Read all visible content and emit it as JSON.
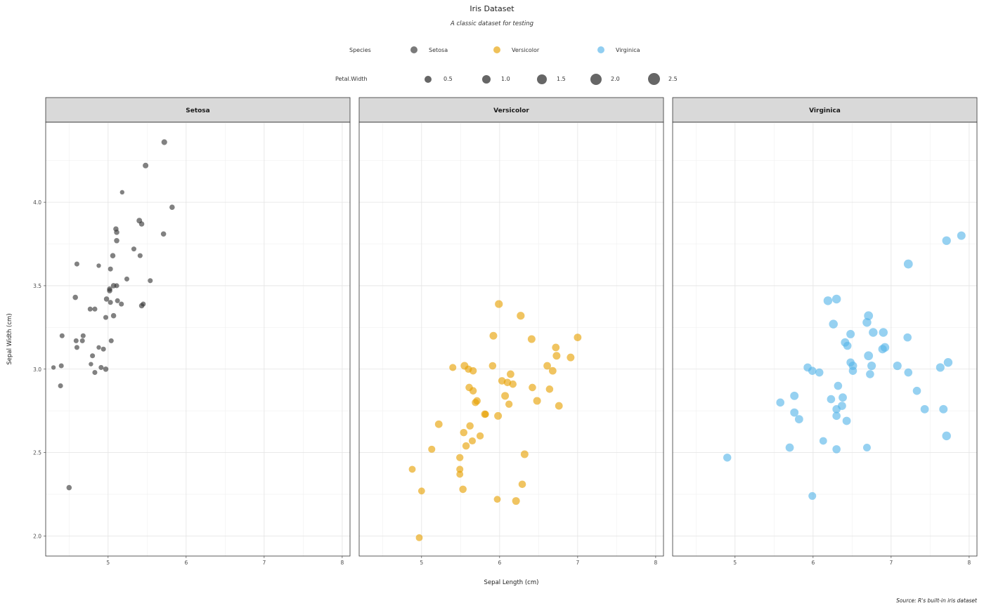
{
  "chart_data": {
    "type": "scatter",
    "title": "Iris Dataset",
    "subtitle": "A classic dataset for testing",
    "caption": "Source: R's built-in iris dataset",
    "xlabel": "Sepal Length (cm)",
    "ylabel": "Sepal Width (cm)",
    "xlim": [
      4.2,
      8.1
    ],
    "ylim": [
      1.88,
      4.48
    ],
    "x_ticks": [
      "5",
      "6",
      "7",
      "8"
    ],
    "y_ticks": [
      "2.0",
      "2.5",
      "3.0",
      "3.5",
      "4.0"
    ],
    "grid": true,
    "legend_position": "top",
    "legends": [
      {
        "title": "Species",
        "entries": [
          {
            "label": "Setosa",
            "color": "#333333"
          },
          {
            "label": "Versicolor",
            "color": "#E69F00"
          },
          {
            "label": "Virginica",
            "color": "#56B4E9"
          }
        ]
      },
      {
        "title": "Petal.Width",
        "entries": [
          {
            "label": "0.5",
            "value": 0.5
          },
          {
            "label": "1.0",
            "value": 1.0
          },
          {
            "label": "1.5",
            "value": 1.5
          },
          {
            "label": "2.0",
            "value": 2.0
          },
          {
            "label": "2.5",
            "value": 2.5
          }
        ]
      }
    ],
    "panels": [
      {
        "name": "Setosa",
        "color": "#333333",
        "points": [
          [
            5.72,
            4.36,
            0.45
          ],
          [
            5.48,
            4.22,
            0.4
          ],
          [
            5.18,
            4.06,
            0.1
          ],
          [
            5.82,
            3.97,
            0.3
          ],
          [
            5.1,
            3.84,
            0.3
          ],
          [
            5.11,
            3.82,
            0.3
          ],
          [
            5.4,
            3.89,
            0.4
          ],
          [
            5.43,
            3.87,
            0.3
          ],
          [
            5.71,
            3.81,
            0.3
          ],
          [
            5.11,
            3.77,
            0.3
          ],
          [
            5.33,
            3.72,
            0.2
          ],
          [
            5.06,
            3.68,
            0.3
          ],
          [
            5.41,
            3.68,
            0.2
          ],
          [
            4.6,
            3.63,
            0.2
          ],
          [
            4.88,
            3.62,
            0.1
          ],
          [
            5.03,
            3.6,
            0.2
          ],
          [
            5.24,
            3.54,
            0.2
          ],
          [
            5.54,
            3.53,
            0.2
          ],
          [
            5.07,
            3.5,
            0.3
          ],
          [
            5.11,
            3.5,
            0.2
          ],
          [
            5.02,
            3.48,
            0.3
          ],
          [
            5.02,
            3.47,
            0.3
          ],
          [
            4.58,
            3.43,
            0.3
          ],
          [
            4.98,
            3.42,
            0.3
          ],
          [
            5.03,
            3.4,
            0.2
          ],
          [
            5.12,
            3.41,
            0.2
          ],
          [
            5.17,
            3.39,
            0.2
          ],
          [
            5.43,
            3.38,
            0.3
          ],
          [
            5.45,
            3.39,
            0.2
          ],
          [
            4.77,
            3.36,
            0.2
          ],
          [
            4.83,
            3.36,
            0.2
          ],
          [
            5.07,
            3.32,
            0.3
          ],
          [
            4.97,
            3.31,
            0.2
          ],
          [
            4.41,
            3.2,
            0.2
          ],
          [
            4.68,
            3.2,
            0.2
          ],
          [
            4.59,
            3.17,
            0.2
          ],
          [
            4.67,
            3.17,
            0.2
          ],
          [
            5.04,
            3.17,
            0.2
          ],
          [
            4.6,
            3.13,
            0.2
          ],
          [
            4.88,
            3.13,
            0.1
          ],
          [
            4.94,
            3.12,
            0.2
          ],
          [
            4.8,
            3.08,
            0.2
          ],
          [
            4.78,
            3.03,
            0.1
          ],
          [
            4.4,
            3.02,
            0.2
          ],
          [
            4.3,
            3.01,
            0.1
          ],
          [
            4.91,
            3.01,
            0.2
          ],
          [
            4.97,
            3.0,
            0.3
          ],
          [
            4.83,
            2.98,
            0.2
          ],
          [
            4.39,
            2.9,
            0.2
          ],
          [
            4.5,
            2.29,
            0.3
          ]
        ]
      },
      {
        "name": "Versicolor",
        "color": "#E69F00",
        "points": [
          [
            5.99,
            3.39,
            1.6
          ],
          [
            6.27,
            3.32,
            1.6
          ],
          [
            5.92,
            3.2,
            1.5
          ],
          [
            6.41,
            3.18,
            1.5
          ],
          [
            7.0,
            3.19,
            1.4
          ],
          [
            6.72,
            3.13,
            1.4
          ],
          [
            6.73,
            3.08,
            1.5
          ],
          [
            6.91,
            3.07,
            1.5
          ],
          [
            5.4,
            3.01,
            1.1
          ],
          [
            5.55,
            3.02,
            1.5
          ],
          [
            5.6,
            3.0,
            1.2
          ],
          [
            5.66,
            2.99,
            1.3
          ],
          [
            5.91,
            3.02,
            1.3
          ],
          [
            6.61,
            3.02,
            1.4
          ],
          [
            6.68,
            2.99,
            1.4
          ],
          [
            6.14,
            2.97,
            1.4
          ],
          [
            6.03,
            2.93,
            1.3
          ],
          [
            6.1,
            2.92,
            1.3
          ],
          [
            6.17,
            2.91,
            1.3
          ],
          [
            5.61,
            2.89,
            1.3
          ],
          [
            5.66,
            2.87,
            1.3
          ],
          [
            6.42,
            2.89,
            1.3
          ],
          [
            6.64,
            2.88,
            1.3
          ],
          [
            6.07,
            2.84,
            1.5
          ],
          [
            5.71,
            2.81,
            1.3
          ],
          [
            5.69,
            2.8,
            1.2
          ],
          [
            6.12,
            2.79,
            1.2
          ],
          [
            6.48,
            2.81,
            1.5
          ],
          [
            6.76,
            2.78,
            1.4
          ],
          [
            5.81,
            2.73,
            1.3
          ],
          [
            5.82,
            2.73,
            1.0
          ],
          [
            5.98,
            2.72,
            1.5
          ],
          [
            5.22,
            2.67,
            1.4
          ],
          [
            5.62,
            2.66,
            1.3
          ],
          [
            5.54,
            2.62,
            1.3
          ],
          [
            5.75,
            2.6,
            1.2
          ],
          [
            5.65,
            2.57,
            1.1
          ],
          [
            5.57,
            2.54,
            1.3
          ],
          [
            5.13,
            2.52,
            1.1
          ],
          [
            6.32,
            2.49,
            1.5
          ],
          [
            5.49,
            2.47,
            1.2
          ],
          [
            4.88,
            2.4,
            1.0
          ],
          [
            5.49,
            2.4,
            1.1
          ],
          [
            5.49,
            2.37,
            1.0
          ],
          [
            6.29,
            2.31,
            1.3
          ],
          [
            5.53,
            2.28,
            1.3
          ],
          [
            5.0,
            2.27,
            1.0
          ],
          [
            5.97,
            2.22,
            1.0
          ],
          [
            6.21,
            2.21,
            1.5
          ],
          [
            4.97,
            1.99,
            1.0
          ]
        ]
      },
      {
        "name": "Virginica",
        "color": "#56B4E9",
        "points": [
          [
            7.9,
            3.8,
            2.0
          ],
          [
            7.71,
            3.77,
            2.2
          ],
          [
            7.22,
            3.63,
            2.5
          ],
          [
            6.3,
            3.42,
            2.3
          ],
          [
            6.19,
            3.41,
            2.3
          ],
          [
            6.71,
            3.32,
            2.5
          ],
          [
            6.69,
            3.28,
            2.3
          ],
          [
            6.26,
            3.27,
            2.3
          ],
          [
            6.9,
            3.22,
            2.3
          ],
          [
            6.48,
            3.21,
            2.0
          ],
          [
            6.77,
            3.22,
            2.3
          ],
          [
            7.21,
            3.19,
            1.8
          ],
          [
            6.41,
            3.16,
            2.0
          ],
          [
            6.44,
            3.14,
            1.8
          ],
          [
            6.92,
            3.13,
            2.3
          ],
          [
            6.89,
            3.12,
            2.1
          ],
          [
            6.71,
            3.08,
            2.5
          ],
          [
            6.48,
            3.04,
            1.8
          ],
          [
            7.73,
            3.04,
            2.3
          ],
          [
            6.51,
            3.02,
            2.0
          ],
          [
            6.75,
            3.02,
            2.1
          ],
          [
            7.08,
            3.02,
            2.1
          ],
          [
            7.63,
            3.01,
            2.1
          ],
          [
            5.93,
            3.01,
            1.8
          ],
          [
            5.99,
            2.99,
            1.8
          ],
          [
            6.08,
            2.98,
            1.8
          ],
          [
            6.51,
            2.99,
            1.8
          ],
          [
            7.22,
            2.98,
            1.8
          ],
          [
            6.73,
            2.97,
            1.8
          ],
          [
            6.32,
            2.9,
            1.8
          ],
          [
            7.33,
            2.87,
            1.8
          ],
          [
            5.76,
            2.84,
            2.0
          ],
          [
            6.23,
            2.82,
            1.8
          ],
          [
            6.38,
            2.83,
            1.9
          ],
          [
            5.58,
            2.8,
            1.8
          ],
          [
            6.37,
            2.78,
            1.9
          ],
          [
            6.3,
            2.76,
            1.8
          ],
          [
            7.43,
            2.76,
            1.9
          ],
          [
            7.67,
            2.76,
            2.0
          ],
          [
            5.76,
            2.74,
            1.9
          ],
          [
            6.3,
            2.72,
            1.8
          ],
          [
            5.82,
            2.7,
            1.9
          ],
          [
            6.43,
            2.69,
            1.9
          ],
          [
            7.71,
            2.6,
            2.3
          ],
          [
            6.13,
            2.57,
            1.4
          ],
          [
            5.7,
            2.53,
            1.9
          ],
          [
            6.69,
            2.53,
            1.5
          ],
          [
            6.3,
            2.52,
            1.8
          ],
          [
            4.9,
            2.47,
            1.7
          ],
          [
            5.99,
            2.24,
            1.5
          ]
        ]
      }
    ]
  }
}
